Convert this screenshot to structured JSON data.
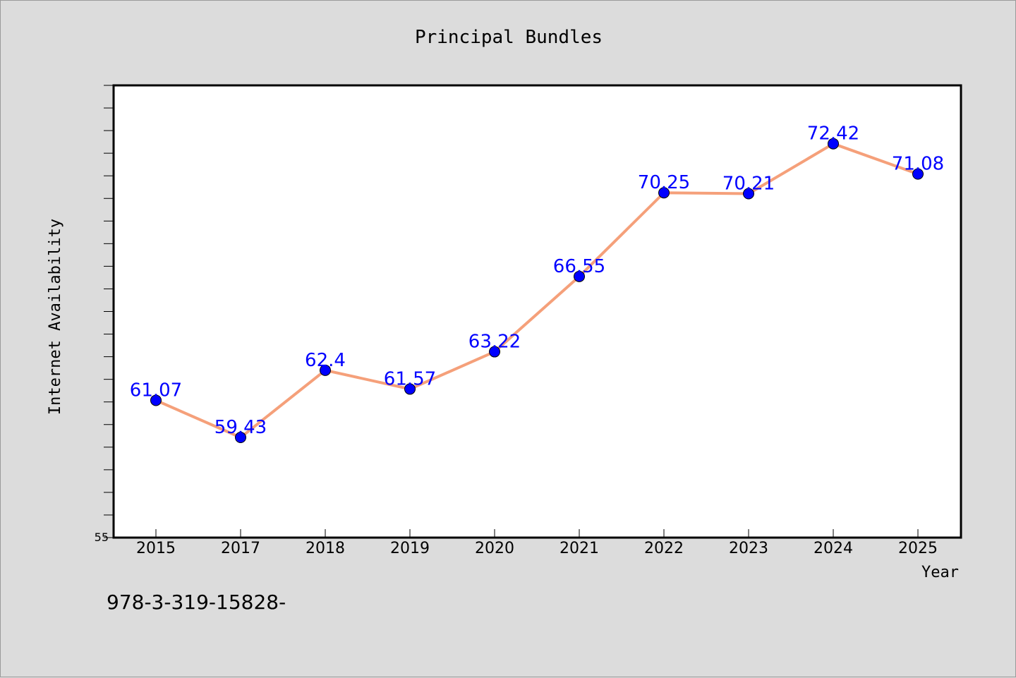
{
  "chart_data": {
    "type": "line",
    "title": "Principal Bundles",
    "xlabel": "Year",
    "ylabel": "Internet Availability",
    "categories": [
      "2015",
      "2017",
      "2018",
      "2019",
      "2020",
      "2021",
      "2022",
      "2023",
      "2024",
      "2025"
    ],
    "series": [
      {
        "values": [
          61.07,
          59.43,
          62.4,
          61.57,
          63.22,
          66.55,
          70.25,
          70.21,
          72.42,
          71.08
        ],
        "labels": [
          "61.07",
          "59.43",
          "62.4",
          "61.57",
          "63.22",
          "66.55",
          "70.25",
          "70.21",
          "72.42",
          "71.08"
        ]
      }
    ],
    "ylim": [
      55,
      75
    ],
    "ytick_labels": [
      "55"
    ],
    "grid": false,
    "line_color": "#f5a07a",
    "marker_color": "#0000ff",
    "label_color": "#0000ff"
  },
  "footer_text": "978-3-319-15828-"
}
